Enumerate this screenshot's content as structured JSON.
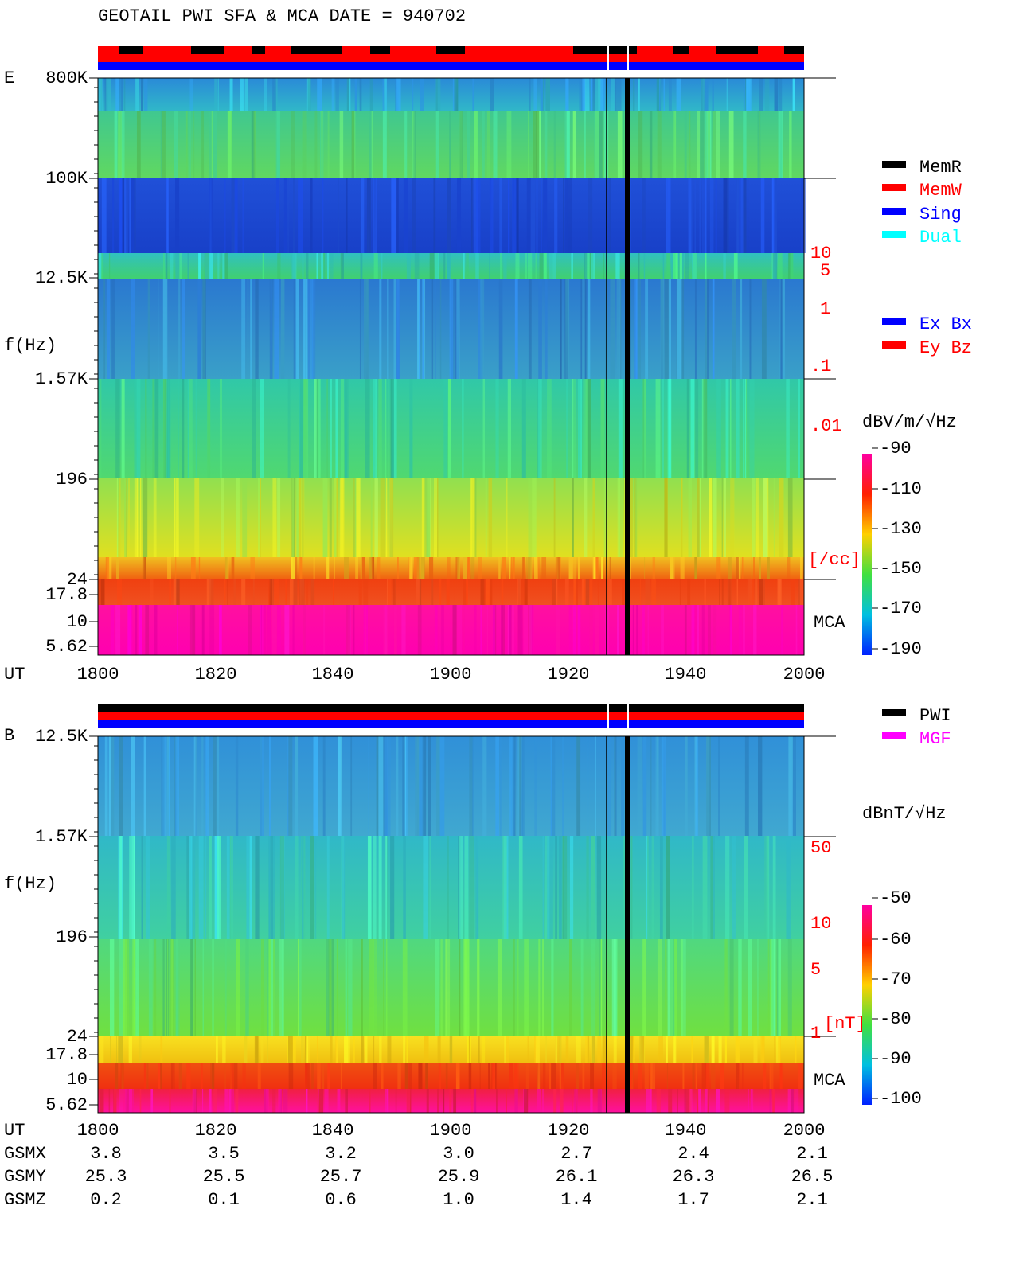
{
  "title": "GEOTAIL  PWI SFA & MCA   DATE = 940702",
  "panels": [
    {
      "component": "E",
      "y_label": "f(Hz)",
      "y_ticks": [
        "800K",
        "100K",
        "12.5K",
        "1.57K",
        "196",
        "24",
        "17.8",
        "10",
        "5.62"
      ],
      "x_label": "UT",
      "x_ticks": [
        "1800",
        "1820",
        "1840",
        "1900",
        "1920",
        "1940",
        "2000"
      ],
      "mca_label": "MCA",
      "right_scale": {
        "ticks": [
          "10",
          "5",
          "1",
          ".1",
          ".01"
        ],
        "unit": "[/cc]"
      },
      "colorbar": {
        "unit": "dBV/m/√Hz",
        "ticks": [
          -90,
          -110,
          -130,
          -150,
          -170,
          -190
        ]
      },
      "legend": [
        {
          "name": "MemR",
          "color": "#000000"
        },
        {
          "name": "MemW",
          "color": "#ff0000"
        },
        {
          "name": "Sing",
          "color": "#0000ff"
        },
        {
          "name": "Dual",
          "color": "#00ffff"
        },
        {
          "name": "Ex Bx",
          "color": "#0000ff"
        },
        {
          "name": "Ey Bz",
          "color": "#ff0000"
        }
      ]
    },
    {
      "component": "B",
      "y_label": "f(Hz)",
      "y_ticks": [
        "12.5K",
        "1.57K",
        "196",
        "24",
        "17.8",
        "10",
        "5.62"
      ],
      "x_label": "UT",
      "x_ticks": [
        "1800",
        "1820",
        "1840",
        "1900",
        "1920",
        "1940",
        "2000"
      ],
      "mca_label": "MCA",
      "right_scale": {
        "ticks": [
          "50",
          "10",
          "5",
          "1"
        ],
        "unit": "[nT]"
      },
      "colorbar": {
        "unit": "dBnT/√Hz",
        "ticks": [
          -50,
          -60,
          -70,
          -80,
          -90,
          -100
        ]
      },
      "legend": [
        {
          "name": "PWI",
          "color": "#000000"
        },
        {
          "name": "MGF",
          "color": "#ff00ff"
        }
      ]
    }
  ],
  "orbit": {
    "rows": [
      {
        "label": "GSMX",
        "values": [
          "3.8",
          "3.5",
          "3.2",
          "3.0",
          "2.7",
          "2.4",
          "2.1"
        ]
      },
      {
        "label": "GSMY",
        "values": [
          "25.3",
          "25.5",
          "25.7",
          "25.9",
          "26.1",
          "26.3",
          "26.5"
        ]
      },
      {
        "label": "GSMZ",
        "values": [
          "0.2",
          "0.1",
          "0.6",
          "1.0",
          "1.4",
          "1.7",
          "2.1"
        ]
      }
    ]
  }
}
